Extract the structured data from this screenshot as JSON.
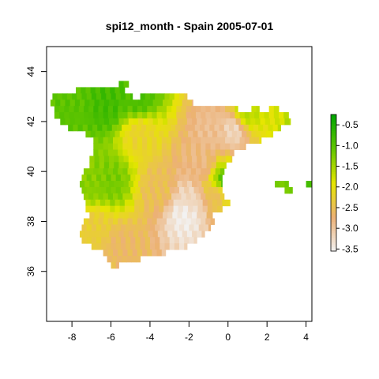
{
  "title": "spi12_month - Spain 2005-07-01",
  "map": {
    "x_range": [
      -9.3,
      4.3
    ],
    "y_range": [
      34.0,
      45.0
    ],
    "x_ticks": [
      -8,
      -6,
      -4,
      -2,
      0,
      2,
      4
    ],
    "y_ticks": [
      36,
      38,
      40,
      42,
      44
    ],
    "cell_size_deg": 0.25
  },
  "legend": {
    "range": [
      -3.55,
      -0.25
    ],
    "ticks": [
      -0.5,
      -1.0,
      -1.5,
      -2.0,
      -2.5,
      -3.0,
      -3.5
    ],
    "tick_labels": [
      "-0.5",
      "-1.0",
      "-1.5",
      "-2.0",
      "-2.5",
      "-3.0",
      "-3.5"
    ],
    "colors": [
      "#f2f2f2",
      "#ecb176",
      "#e6e600",
      "#63c600",
      "#00a600"
    ]
  },
  "spi_anomalies": [
    {
      "lon": -2.2,
      "lat": 38.3,
      "spi": -3.5
    },
    {
      "lon": -2.0,
      "lat": 38.8,
      "spi": -3.2
    },
    {
      "lon": 0.3,
      "lat": 41.7,
      "spi": -3.2
    },
    {
      "lon": -0.8,
      "lat": 41.6,
      "spi": -2.9
    },
    {
      "lon": -1.4,
      "lat": 40.2,
      "spi": -2.8
    },
    {
      "lon": -0.5,
      "lat": 39.2,
      "spi": -2.7
    },
    {
      "lon": -3.5,
      "lat": 39.3,
      "spi": -2.5
    },
    {
      "lon": -5.5,
      "lat": 37.0,
      "spi": -2.6
    },
    {
      "lon": -6.8,
      "lat": 37.8,
      "spi": -2.3
    },
    {
      "lon": -4.5,
      "lat": 41.5,
      "spi": -2.2
    },
    {
      "lon": -6.2,
      "lat": 42.7,
      "spi": -0.8
    },
    {
      "lon": -8.0,
      "lat": 42.8,
      "spi": -1.0
    },
    {
      "lon": -4.6,
      "lat": 42.9,
      "spi": -0.9
    },
    {
      "lon": -6.0,
      "lat": 39.6,
      "spi": -1.2
    },
    {
      "lon": -7.0,
      "lat": 39.5,
      "spi": -1.3
    },
    {
      "lon": 0.9,
      "lat": 42.3,
      "spi": -1.6
    },
    {
      "lon": -0.3,
      "lat": 39.5,
      "spi": -0.8
    },
    {
      "lon": 2.8,
      "lat": 39.5,
      "spi": -1.2
    },
    {
      "lon": 4.0,
      "lat": 39.9,
      "spi": -0.9
    }
  ],
  "grid_rows": [
    [
      43.5,
      [
        [
          -5.6,
          -5.1
        ]
      ]
    ],
    [
      43.25,
      [
        [
          -7.8,
          -5.3
        ]
      ]
    ],
    [
      43.0,
      [
        [
          -9.0,
          -4.9
        ],
        [
          -4.5,
          -2.1
        ]
      ]
    ],
    [
      42.75,
      [
        [
          -9.1,
          -1.8
        ]
      ]
    ],
    [
      42.5,
      [
        [
          -8.9,
          0.5
        ],
        [
          1.2,
          1.6
        ],
        [
          2.1,
          2.6
        ]
      ]
    ],
    [
      42.25,
      [
        [
          -8.9,
          3.1
        ]
      ]
    ],
    [
      42.0,
      [
        [
          -8.6,
          3.2
        ]
      ]
    ],
    [
      41.75,
      [
        [
          -8.2,
          2.7
        ]
      ]
    ],
    [
      41.5,
      [
        [
          -7.3,
          2.3
        ]
      ]
    ],
    [
      41.25,
      [
        [
          -6.9,
          1.7
        ]
      ]
    ],
    [
      41.0,
      [
        [
          -6.9,
          0.9
        ]
      ]
    ],
    [
      40.75,
      [
        [
          -6.9,
          0.3
        ]
      ]
    ],
    [
      40.5,
      [
        [
          -7.1,
          0.2
        ]
      ]
    ],
    [
      40.25,
      [
        [
          -7.1,
          -0.1
        ]
      ]
    ],
    [
      40.0,
      [
        [
          -7.4,
          -0.2
        ]
      ]
    ],
    [
      39.75,
      [
        [
          -7.5,
          -0.3
        ]
      ]
    ],
    [
      39.5,
      [
        [
          -7.6,
          -0.3
        ],
        [
          2.4,
          3.1
        ],
        [
          4.0,
          4.3
        ]
      ]
    ],
    [
      39.25,
      [
        [
          -7.5,
          -0.3
        ],
        [
          2.9,
          3.3
        ]
      ]
    ],
    [
      39.0,
      [
        [
          -7.4,
          -0.2
        ]
      ]
    ],
    [
      38.75,
      [
        [
          -7.3,
          0.1
        ]
      ]
    ],
    [
      38.5,
      [
        [
          -7.3,
          -0.3
        ]
      ]
    ],
    [
      38.25,
      [
        [
          -7.1,
          -0.8
        ]
      ]
    ],
    [
      38.0,
      [
        [
          -7.4,
          -0.7
        ]
      ]
    ],
    [
      37.75,
      [
        [
          -7.5,
          -0.9
        ]
      ]
    ],
    [
      37.5,
      [
        [
          -7.6,
          -1.2
        ]
      ]
    ],
    [
      37.25,
      [
        [
          -7.5,
          -1.6
        ]
      ]
    ],
    [
      37.0,
      [
        [
          -7.0,
          -2.1
        ]
      ]
    ],
    [
      36.75,
      [
        [
          -6.4,
          -3.2
        ]
      ]
    ],
    [
      36.5,
      [
        [
          -6.2,
          -4.5
        ]
      ]
    ],
    [
      36.25,
      [
        [
          -6.0,
          -5.6
        ]
      ]
    ]
  ]
}
